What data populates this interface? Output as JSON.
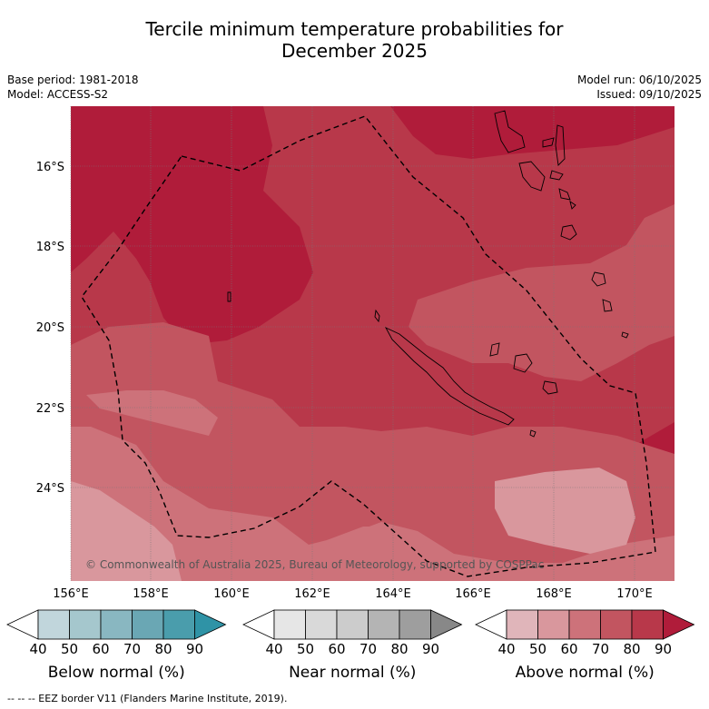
{
  "header": {
    "title_line1": "Tercile minimum temperature probabilities for",
    "title_line2": "December 2025",
    "base_period": "Base period: 1981-2018",
    "model": "Model: ACCESS-S2",
    "model_run": "Model run: 06/10/2025",
    "issued": "Issued: 09/10/2025"
  },
  "map": {
    "lat_ticks": [
      "16°S",
      "18°S",
      "20°S",
      "22°S",
      "24°S"
    ],
    "lon_ticks": [
      "156°E",
      "158°E",
      "160°E",
      "162°E",
      "164°E",
      "166°E",
      "168°E",
      "170°E"
    ],
    "copyright": "© Commonwealth of Australia 2025, Bureau of Meteorology, supported by COSPPac",
    "region": "New Caledonia EEZ",
    "fill_colors": {
      "above_50": "#d9979d",
      "above_60": "#cd727a",
      "above_70": "#c25560",
      "above_80": "#b8384a",
      "above_90": "#b01c3a"
    }
  },
  "colorbars": [
    {
      "label": "Below normal (%)",
      "ticks": [
        "40",
        "50",
        "60",
        "70",
        "80",
        "90"
      ],
      "colors": [
        "#c1d6dc",
        "#a5c7cd",
        "#89b7c1",
        "#6aa7b4",
        "#4a9dac",
        "#2f93a6"
      ]
    },
    {
      "label": "Near normal (%)",
      "ticks": [
        "40",
        "50",
        "60",
        "70",
        "80",
        "90"
      ],
      "colors": [
        "#e6e6e6",
        "#d9d9d9",
        "#cccccc",
        "#b4b4b4",
        "#9e9e9e",
        "#888888"
      ]
    },
    {
      "label": "Above normal (%)",
      "ticks": [
        "40",
        "50",
        "60",
        "70",
        "80",
        "90"
      ],
      "colors": [
        "#e0b5ba",
        "#d9979d",
        "#cd727a",
        "#c25560",
        "#b8384a",
        "#b01c3a"
      ]
    }
  ],
  "footer": {
    "eez_legend": "--  --  -- EEZ border V11 (Flanders Marine Institute, 2019)."
  }
}
